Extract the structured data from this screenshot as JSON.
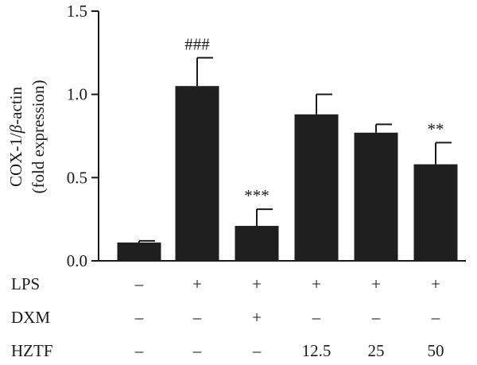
{
  "chart_data": {
    "type": "bar",
    "ylabel_line1": "COX-1/",
    "ylabel_beta": "β",
    "ylabel_line1_tail": "-actin",
    "ylabel_line2": "(fold expression)",
    "ylim": [
      0,
      1.5
    ],
    "yticks": [
      "0.0",
      "0.5",
      "1.0",
      "1.5"
    ],
    "ytick_values": [
      0,
      0.5,
      1.0,
      1.5
    ],
    "grid": false,
    "bar_color": "#1f1f1f",
    "values": [
      0.11,
      1.05,
      0.21,
      0.88,
      0.77,
      0.58
    ],
    "errors": [
      0.01,
      0.17,
      0.1,
      0.12,
      0.05,
      0.13
    ],
    "significance": [
      "",
      "###",
      "***",
      "",
      "",
      "**"
    ],
    "conditions": [
      {
        "name": "LPS",
        "values": [
          "–",
          "+",
          "+",
          "+",
          "+",
          "+"
        ]
      },
      {
        "name": "DXM",
        "values": [
          "–",
          "–",
          "+",
          "–",
          "–",
          "–"
        ]
      },
      {
        "name": "HZTF",
        "values": [
          "–",
          "–",
          "–",
          "12.5",
          "25",
          "50"
        ]
      }
    ]
  }
}
